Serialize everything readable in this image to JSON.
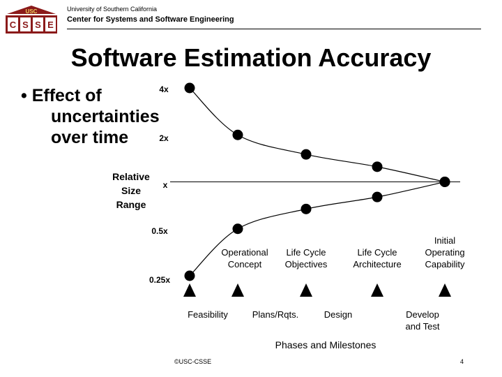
{
  "header": {
    "logo_text_top": "USC",
    "logo_letters": [
      "C",
      "S",
      "S",
      "E"
    ],
    "university": "University of Southern California",
    "center": "Center for Systems and Software Engineering"
  },
  "slide": {
    "title": "Software Estimation Accuracy",
    "bullet_line1": "• Effect of",
    "bullet_line2": "uncertainties",
    "bullet_line3": "over time"
  },
  "chart_data": {
    "type": "line",
    "ylabel": [
      "Relative",
      "Size",
      "Range"
    ],
    "y_ticks": [
      {
        "label": "4x",
        "value": 4
      },
      {
        "label": "2x",
        "value": 2
      },
      {
        "label": "x",
        "value": 1
      },
      {
        "label": "0.5x",
        "value": 0.5
      },
      {
        "label": "0.25x",
        "value": 0.25
      }
    ],
    "ylim": [
      0.25,
      4
    ],
    "scale": "log",
    "milestones": [
      {
        "label": "",
        "x": 0
      },
      {
        "label": "Operational Concept",
        "x": 1
      },
      {
        "label": "Life Cycle Objectives",
        "x": 2
      },
      {
        "label": "Life Cycle Architecture",
        "x": 3
      },
      {
        "label": "Initial Operating Capability",
        "x": 4
      }
    ],
    "milestone_lines": [
      [
        "",
        ""
      ],
      [
        "Operational",
        "Concept"
      ],
      [
        "Life Cycle",
        "Objectives"
      ],
      [
        "Life Cycle",
        "Architecture"
      ],
      [
        "Initial",
        "Operating",
        "Capability"
      ]
    ],
    "phases": [
      {
        "lines": [
          "Feasibility"
        ],
        "x": 0.5
      },
      {
        "lines": [
          "Plans/Rqts."
        ],
        "x": 1.5
      },
      {
        "lines": [
          "Design"
        ],
        "x": 2.5
      },
      {
        "lines": [
          "Develop",
          "and Test"
        ],
        "x": 3.5
      }
    ],
    "xlabel": "Phases and Milestones",
    "series": [
      {
        "values": [
          4,
          2,
          1.5,
          1.25,
          1
        ]
      },
      {
        "values": [
          0.25,
          0.5,
          0.67,
          0.8,
          1
        ]
      }
    ],
    "reference_line": 1,
    "grid": false
  },
  "footer": {
    "copyright": "©USC-CSSE",
    "page": "4"
  }
}
